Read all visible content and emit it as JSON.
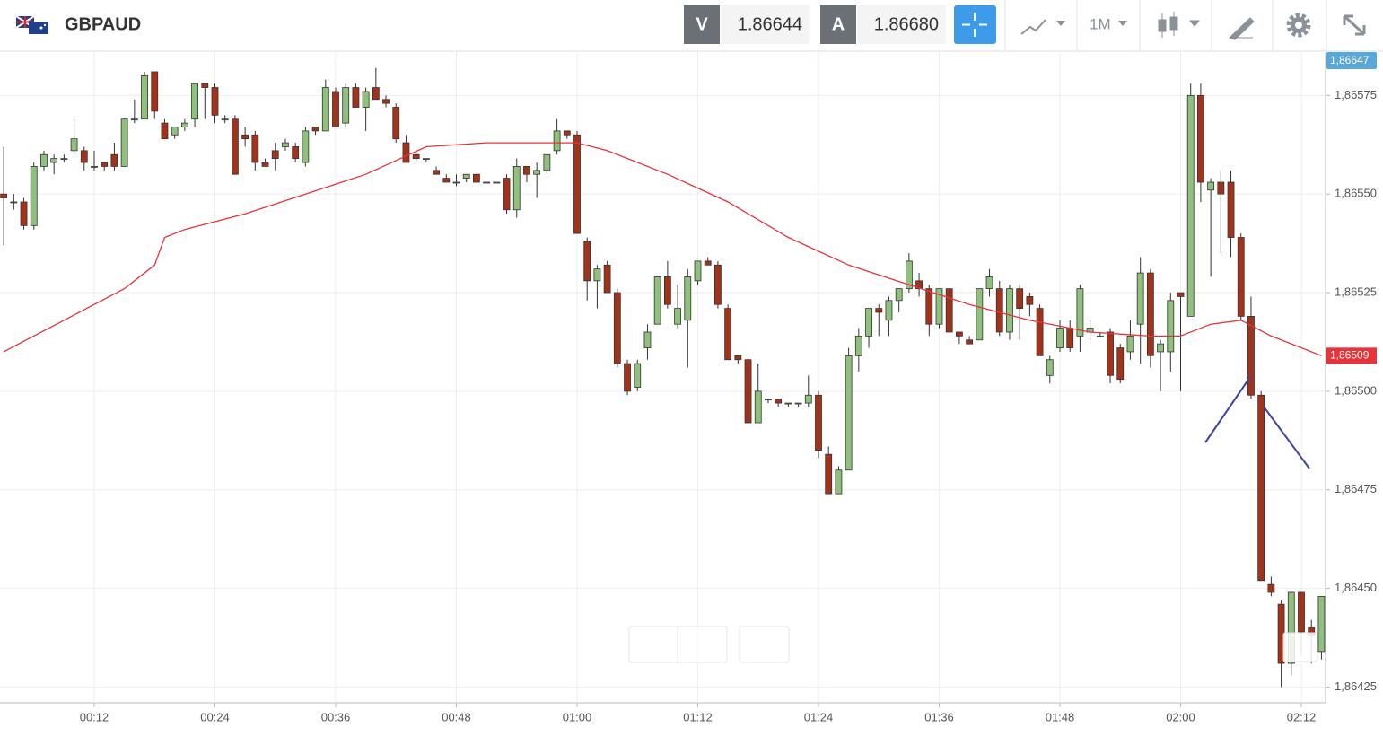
{
  "toolbar": {
    "symbol": "GBPAUD",
    "sell_label": "V",
    "sell_price": "1.86644",
    "buy_label": "A",
    "buy_price": "1.86680",
    "timeframe": "1M"
  },
  "chart_data": {
    "type": "candlestick",
    "x": [
      "00:03",
      "00:04",
      "00:05",
      "00:06",
      "00:07",
      "00:08",
      "00:09",
      "00:10",
      "00:11",
      "00:12",
      "00:13",
      "00:14",
      "00:15",
      "00:16",
      "00:17",
      "00:18",
      "00:19",
      "00:20",
      "00:21",
      "00:22",
      "00:23",
      "00:24",
      "00:25",
      "00:26",
      "00:27",
      "00:28",
      "00:29",
      "00:30",
      "00:31",
      "00:32",
      "00:33",
      "00:34",
      "00:35",
      "00:36",
      "00:37",
      "00:38",
      "00:39",
      "00:40",
      "00:41",
      "00:42",
      "00:43",
      "00:44",
      "00:45",
      "00:46",
      "00:47",
      "00:48",
      "00:49",
      "00:50",
      "00:51",
      "00:52",
      "00:53",
      "00:54",
      "00:55",
      "00:56",
      "00:57",
      "00:58",
      "00:59",
      "01:00",
      "01:01",
      "01:02",
      "01:03",
      "01:04",
      "01:05",
      "01:06",
      "01:07",
      "01:08",
      "01:09",
      "01:10",
      "01:11",
      "01:12",
      "01:13",
      "01:14",
      "01:15",
      "01:16",
      "01:17",
      "01:18",
      "01:19",
      "01:20",
      "01:21",
      "01:22",
      "01:23",
      "01:24",
      "01:25",
      "01:26",
      "01:27",
      "01:28",
      "01:29",
      "01:30",
      "01:31",
      "01:32",
      "01:33",
      "01:34",
      "01:35",
      "01:36",
      "01:37",
      "01:38",
      "01:39",
      "01:40",
      "01:41",
      "01:42",
      "01:43",
      "01:44",
      "01:45",
      "01:46",
      "01:47",
      "01:48",
      "01:49",
      "01:50",
      "01:51",
      "01:52",
      "01:53",
      "01:54",
      "01:55",
      "01:56",
      "01:57",
      "01:58",
      "01:59",
      "02:00",
      "02:01",
      "02:02",
      "02:03",
      "02:04",
      "02:05",
      "02:06",
      "02:07",
      "02:08",
      "02:09",
      "02:10",
      "02:11",
      "02:12",
      "02:13",
      "02:14"
    ],
    "open": [
      1.8655,
      1.86548,
      1.86548,
      1.86542,
      1.86557,
      1.86558,
      1.86559,
      1.86561,
      1.86561,
      1.86557,
      1.86558,
      1.8656,
      1.86557,
      1.86569,
      1.86569,
      1.86581,
      1.86568,
      1.86565,
      1.86567,
      1.86569,
      1.86578,
      1.86577,
      1.86569,
      1.86569,
      1.86565,
      1.86565,
      1.86558,
      1.86561,
      1.86562,
      1.86562,
      1.86558,
      1.86567,
      1.86566,
      1.86576,
      1.86568,
      1.86577,
      1.86572,
      1.86577,
      1.86574,
      1.86572,
      1.86563,
      1.8656,
      1.86559,
      1.86556,
      1.86554,
      1.86553,
      1.86554,
      1.86555,
      1.86553,
      1.86553,
      1.86554,
      1.86546,
      1.86557,
      1.86555,
      1.86556,
      1.86561,
      1.86566,
      1.86565,
      1.86538,
      1.86528,
      1.86532,
      1.86525,
      1.86507,
      1.86501,
      1.86511,
      1.86517,
      1.86529,
      1.86517,
      1.86518,
      1.86528,
      1.86533,
      1.86532,
      1.86521,
      1.86509,
      1.86508,
      1.86492,
      1.86498,
      1.86498,
      1.86497,
      1.86497,
      1.86497,
      1.86499,
      1.86484,
      1.86474,
      1.8648,
      1.86509,
      1.86514,
      1.86521,
      1.86518,
      1.86523,
      1.86526,
      1.86528,
      1.86526,
      1.86517,
      1.86526,
      1.86515,
      1.86513,
      1.86513,
      1.86526,
      1.86526,
      1.86515,
      1.86526,
      1.86524,
      1.86521,
      1.86504,
      1.86511,
      1.86516,
      1.86514,
      1.86515,
      1.86514,
      1.86515,
      1.86511,
      1.8651,
      1.86517,
      1.8653,
      1.8651,
      1.8651,
      1.86525,
      1.86519,
      1.86575,
      1.86551,
      1.86553,
      1.86553,
      1.86539,
      1.86519,
      1.86499,
      1.86451,
      1.86446,
      1.86431,
      1.86449,
      1.8644,
      1.86434
    ],
    "high": [
      1.86562,
      1.8655,
      1.86549,
      1.86558,
      1.86561,
      1.8656,
      1.8656,
      1.86569,
      1.86562,
      1.86561,
      1.86558,
      1.86563,
      1.86569,
      1.86574,
      1.86581,
      1.86581,
      1.86569,
      1.86567,
      1.86569,
      1.86578,
      1.86578,
      1.86578,
      1.8657,
      1.8657,
      1.86567,
      1.86566,
      1.86559,
      1.86563,
      1.86564,
      1.86563,
      1.86567,
      1.86567,
      1.86579,
      1.86577,
      1.86578,
      1.86578,
      1.86577,
      1.86582,
      1.86575,
      1.86573,
      1.86565,
      1.86561,
      1.86559,
      1.86557,
      1.86555,
      1.86555,
      1.86555,
      1.86555,
      1.86553,
      1.86553,
      1.86555,
      1.86559,
      1.86557,
      1.86558,
      1.8656,
      1.86569,
      1.86566,
      1.86566,
      1.86539,
      1.86532,
      1.86533,
      1.86526,
      1.86508,
      1.86508,
      1.86517,
      1.86529,
      1.86533,
      1.86527,
      1.86531,
      1.86533,
      1.86534,
      1.86533,
      1.86522,
      1.86509,
      1.86509,
      1.86507,
      1.86498,
      1.86498,
      1.86497,
      1.86497,
      1.86504,
      1.865,
      1.86486,
      1.86481,
      1.86511,
      1.86516,
      1.86521,
      1.86522,
      1.86524,
      1.86526,
      1.86535,
      1.8653,
      1.86527,
      1.86526,
      1.86526,
      1.86515,
      1.86514,
      1.86526,
      1.86531,
      1.86528,
      1.86527,
      1.86527,
      1.86525,
      1.86522,
      1.86509,
      1.86518,
      1.86518,
      1.86527,
      1.86518,
      1.86515,
      1.86516,
      1.86512,
      1.86518,
      1.86534,
      1.86531,
      1.86513,
      1.86525,
      1.86525,
      1.86578,
      1.86578,
      1.86554,
      1.86556,
      1.86556,
      1.8654,
      1.86524,
      1.865,
      1.86453,
      1.86447,
      1.86449,
      1.86449,
      1.86442,
      1.86448
    ],
    "low": [
      1.86537,
      1.86546,
      1.86541,
      1.86541,
      1.86556,
      1.86555,
      1.86558,
      1.8656,
      1.86556,
      1.86556,
      1.86556,
      1.86556,
      1.86557,
      1.86568,
      1.86569,
      1.86569,
      1.86564,
      1.86564,
      1.86566,
      1.86567,
      1.86569,
      1.86568,
      1.86568,
      1.86555,
      1.86562,
      1.86556,
      1.86557,
      1.86556,
      1.86561,
      1.86558,
      1.86557,
      1.86565,
      1.86566,
      1.86567,
      1.86567,
      1.86572,
      1.86566,
      1.86574,
      1.86572,
      1.86563,
      1.86558,
      1.86558,
      1.86558,
      1.86555,
      1.86553,
      1.86552,
      1.86553,
      1.86553,
      1.86553,
      1.86553,
      1.86545,
      1.86544,
      1.86553,
      1.86549,
      1.86555,
      1.8656,
      1.86564,
      1.8654,
      1.86523,
      1.86521,
      1.86525,
      1.86506,
      1.86499,
      1.865,
      1.86508,
      1.86517,
      1.86521,
      1.86516,
      1.86506,
      1.86527,
      1.86532,
      1.86521,
      1.86508,
      1.86507,
      1.86492,
      1.86492,
      1.86497,
      1.86496,
      1.86496,
      1.86496,
      1.86496,
      1.86483,
      1.86474,
      1.86474,
      1.8648,
      1.86505,
      1.86511,
      1.86514,
      1.86514,
      1.8652,
      1.86525,
      1.86524,
      1.86514,
      1.86516,
      1.86515,
      1.86512,
      1.86512,
      1.86513,
      1.86524,
      1.86514,
      1.86513,
      1.86513,
      1.86519,
      1.86509,
      1.86502,
      1.8651,
      1.8651,
      1.8651,
      1.86513,
      1.86514,
      1.86502,
      1.86502,
      1.86508,
      1.86507,
      1.86506,
      1.865,
      1.86505,
      1.865,
      1.86519,
      1.86548,
      1.86529,
      1.86535,
      1.86534,
      1.86518,
      1.86498,
      1.86452,
      1.86448,
      1.86425,
      1.86428,
      1.86433,
      1.86431,
      1.86432
    ],
    "close": [
      1.86549,
      1.86548,
      1.86542,
      1.86557,
      1.8656,
      1.86559,
      1.86559,
      1.86564,
      1.86558,
      1.86557,
      1.86557,
      1.86557,
      1.86569,
      1.86569,
      1.8658,
      1.86571,
      1.86564,
      1.86567,
      1.86568,
      1.86578,
      1.86577,
      1.8657,
      1.86569,
      1.86555,
      1.86564,
      1.86558,
      1.86557,
      1.86559,
      1.86563,
      1.86559,
      1.86566,
      1.86566,
      1.86577,
      1.86567,
      1.86577,
      1.86572,
      1.86576,
      1.86574,
      1.86573,
      1.86564,
      1.86558,
      1.86559,
      1.86559,
      1.86555,
      1.86553,
      1.86553,
      1.86555,
      1.86553,
      1.86553,
      1.86553,
      1.86546,
      1.86557,
      1.86555,
      1.86556,
      1.8656,
      1.86566,
      1.86565,
      1.8654,
      1.86528,
      1.86531,
      1.86525,
      1.86507,
      1.865,
      1.86507,
      1.86515,
      1.86529,
      1.86522,
      1.86521,
      1.86529,
      1.86533,
      1.86532,
      1.86522,
      1.86508,
      1.86508,
      1.86492,
      1.865,
      1.86498,
      1.86497,
      1.86497,
      1.86497,
      1.86499,
      1.86485,
      1.86474,
      1.8648,
      1.86509,
      1.86514,
      1.86521,
      1.8652,
      1.86523,
      1.86526,
      1.86533,
      1.86526,
      1.86517,
      1.86526,
      1.86515,
      1.86514,
      1.86512,
      1.86526,
      1.86529,
      1.86515,
      1.86526,
      1.86521,
      1.86522,
      1.86509,
      1.86508,
      1.86516,
      1.86511,
      1.86526,
      1.86516,
      1.86514,
      1.86504,
      1.86503,
      1.86514,
      1.8653,
      1.86509,
      1.86512,
      1.86523,
      1.86524,
      1.86575,
      1.86553,
      1.86553,
      1.8655,
      1.86539,
      1.86519,
      1.86499,
      1.86452,
      1.86449,
      1.86431,
      1.86449,
      1.86439,
      1.86438,
      1.86448
    ],
    "up_color": "#8fc07c",
    "down_color": "#a3321b",
    "moving_average": {
      "color": "#e8333a",
      "x": [
        "00:03",
        "00:09",
        "00:15",
        "00:18",
        "00:19",
        "00:21",
        "00:27",
        "00:33",
        "00:39",
        "00:45",
        "00:51",
        "00:57",
        "01:00",
        "01:03",
        "01:09",
        "01:15",
        "01:21",
        "01:27",
        "01:33",
        "01:39",
        "01:45",
        "01:51",
        "01:57",
        "02:00",
        "02:03",
        "02:06",
        "02:09",
        "02:12",
        "02:14"
      ],
      "values": [
        1.8651,
        1.86518,
        1.86526,
        1.86532,
        1.86539,
        1.86541,
        1.86545,
        1.8655,
        1.86555,
        1.86562,
        1.86563,
        1.86563,
        1.86563,
        1.86561,
        1.86555,
        1.86548,
        1.86539,
        1.86532,
        1.86527,
        1.86522,
        1.86518,
        1.86515,
        1.86514,
        1.86514,
        1.86517,
        1.86518,
        1.86514,
        1.86511,
        1.86509
      ],
      "tag_label": "1,86509"
    },
    "top_tag": {
      "label": "1,86647",
      "color": "#5aa8da"
    },
    "ylim": [
      1.86421,
      1.86586
    ],
    "yticks": [
      {
        "value": 1.86425,
        "label": "1,86425"
      },
      {
        "value": 1.8645,
        "label": "1,86450"
      },
      {
        "value": 1.86475,
        "label": "1,86475"
      },
      {
        "value": 1.865,
        "label": "1,86500"
      },
      {
        "value": 1.86525,
        "label": "1,86525"
      },
      {
        "value": 1.8655,
        "label": "1,86550"
      },
      {
        "value": 1.86575,
        "label": "1,86575"
      }
    ],
    "xticks": [
      "00:12",
      "00:24",
      "00:36",
      "00:48",
      "01:00",
      "01:12",
      "01:24",
      "01:36",
      "01:48",
      "02:00",
      "02:12"
    ],
    "grid": true
  }
}
